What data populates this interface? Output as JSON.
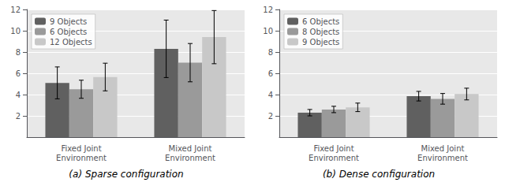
{
  "chart_data": [
    {
      "type": "bar",
      "subtitle": "(a) Sparse configuration",
      "categories": [
        "Fixed Joint\nEnvironment",
        "Mixed Joint\nEnvironment"
      ],
      "series": [
        {
          "name": "9 Objects",
          "color": "#606060",
          "values": [
            5.1,
            8.3
          ],
          "yerr": [
            1.5,
            2.7
          ]
        },
        {
          "name": "6 Objects",
          "color": "#9a9a9a",
          "values": [
            4.5,
            7.0
          ],
          "yerr": [
            0.85,
            1.8
          ]
        },
        {
          "name": "12 Objects",
          "color": "#c8c8c8",
          "values": [
            5.65,
            9.4
          ],
          "yerr": [
            1.3,
            2.5
          ]
        }
      ],
      "ylim": [
        0,
        12
      ],
      "yticks": [
        2,
        4,
        6,
        8,
        10,
        12
      ],
      "grid": true,
      "legend": "upper left"
    },
    {
      "type": "bar",
      "subtitle": "(b) Dense configuration",
      "categories": [
        "Fixed Joint\nEnvironment",
        "Mixed Joint\nEnvironment"
      ],
      "series": [
        {
          "name": "6 Objects",
          "color": "#606060",
          "values": [
            2.3,
            3.85
          ],
          "yerr": [
            0.3,
            0.45
          ]
        },
        {
          "name": "8 Objects",
          "color": "#9a9a9a",
          "values": [
            2.6,
            3.6
          ],
          "yerr": [
            0.3,
            0.5
          ]
        },
        {
          "name": "9 Objects",
          "color": "#c8c8c8",
          "values": [
            2.8,
            4.05
          ],
          "yerr": [
            0.4,
            0.55
          ]
        }
      ],
      "ylim": [
        0,
        12
      ],
      "yticks": [
        2,
        4,
        6,
        8,
        10,
        12
      ],
      "grid": true,
      "legend": "upper left"
    }
  ]
}
